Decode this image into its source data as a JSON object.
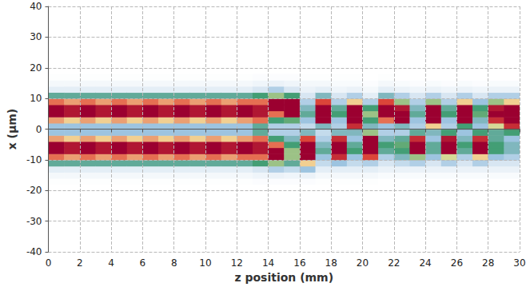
{
  "chart_data": {
    "type": "heatmap",
    "x_label": "z position (mm)",
    "y_label": "x (µm)",
    "xlim": [
      0,
      30
    ],
    "ylim": [
      -40,
      40
    ],
    "xticks": [
      0,
      2,
      4,
      6,
      8,
      10,
      12,
      14,
      16,
      18,
      20,
      22,
      24,
      26,
      28,
      30
    ],
    "yticks": [
      -40,
      -30,
      -20,
      -10,
      0,
      10,
      20,
      30,
      40
    ],
    "grid": true,
    "x": [
      0.5,
      1.5,
      2.5,
      3.5,
      4.5,
      5.5,
      6.5,
      7.5,
      8.5,
      9.5,
      10.5,
      11.5,
      12.5,
      13.5,
      14.5,
      15.5,
      16.5,
      17.5,
      18.5,
      19.5,
      20.5,
      21.5,
      22.5,
      23.5,
      24.5,
      25.5,
      26.5,
      27.5,
      28.5,
      29.5
    ],
    "y": [
      -17,
      -15,
      -13,
      -11,
      -9,
      -7,
      -5,
      -3,
      -1,
      1,
      3,
      5,
      7,
      9,
      11,
      13,
      15,
      17
    ],
    "values": [
      [
        0.04,
        0.08,
        0.15,
        0.45,
        0.8,
        1,
        1,
        0.75,
        0.35,
        0.35,
        0.75,
        1,
        1,
        0.8,
        0.45,
        0.15,
        0.08,
        0.04
      ],
      [
        0.04,
        0.08,
        0.15,
        0.45,
        0.75,
        0.95,
        0.95,
        0.7,
        0.35,
        0.35,
        0.7,
        0.95,
        0.95,
        0.75,
        0.45,
        0.15,
        0.08,
        0.04
      ],
      [
        0.04,
        0.08,
        0.15,
        0.45,
        0.8,
        1,
        1,
        0.75,
        0.35,
        0.35,
        0.75,
        1,
        1,
        0.8,
        0.45,
        0.15,
        0.08,
        0.04
      ],
      [
        0.04,
        0.08,
        0.15,
        0.45,
        0.75,
        0.95,
        0.95,
        0.7,
        0.35,
        0.35,
        0.7,
        0.95,
        0.95,
        0.75,
        0.45,
        0.15,
        0.08,
        0.04
      ],
      [
        0.04,
        0.08,
        0.15,
        0.45,
        0.8,
        1,
        1,
        0.75,
        0.35,
        0.35,
        0.75,
        1,
        1,
        0.8,
        0.45,
        0.15,
        0.08,
        0.04
      ],
      [
        0.04,
        0.08,
        0.15,
        0.45,
        0.75,
        0.95,
        0.95,
        0.7,
        0.35,
        0.35,
        0.7,
        0.95,
        0.95,
        0.75,
        0.45,
        0.15,
        0.08,
        0.04
      ],
      [
        0.04,
        0.08,
        0.15,
        0.45,
        0.8,
        1,
        1,
        0.75,
        0.35,
        0.35,
        0.75,
        1,
        1,
        0.8,
        0.45,
        0.15,
        0.08,
        0.04
      ],
      [
        0.04,
        0.08,
        0.15,
        0.45,
        0.75,
        0.95,
        0.95,
        0.7,
        0.35,
        0.35,
        0.7,
        0.95,
        0.95,
        0.75,
        0.45,
        0.15,
        0.08,
        0.04
      ],
      [
        0.04,
        0.08,
        0.15,
        0.45,
        0.8,
        1,
        1,
        0.75,
        0.35,
        0.35,
        0.75,
        1,
        1,
        0.8,
        0.45,
        0.15,
        0.08,
        0.04
      ],
      [
        0.04,
        0.08,
        0.15,
        0.45,
        0.75,
        0.95,
        0.95,
        0.7,
        0.35,
        0.35,
        0.7,
        0.95,
        0.95,
        0.75,
        0.45,
        0.15,
        0.08,
        0.04
      ],
      [
        0.04,
        0.08,
        0.15,
        0.45,
        0.8,
        1,
        1,
        0.75,
        0.35,
        0.35,
        0.75,
        1,
        1,
        0.8,
        0.45,
        0.15,
        0.08,
        0.04
      ],
      [
        0.04,
        0.08,
        0.15,
        0.45,
        0.75,
        0.95,
        0.95,
        0.7,
        0.35,
        0.35,
        0.7,
        0.95,
        0.95,
        0.75,
        0.45,
        0.15,
        0.08,
        0.04
      ],
      [
        0.04,
        0.08,
        0.15,
        0.45,
        0.8,
        1,
        1,
        0.75,
        0.35,
        0.35,
        0.75,
        1,
        1,
        0.8,
        0.45,
        0.15,
        0.08,
        0.04
      ],
      [
        0.05,
        0.1,
        0.2,
        0.5,
        0.8,
        0.95,
        0.95,
        0.8,
        0.45,
        0.45,
        0.8,
        0.95,
        0.95,
        0.8,
        0.5,
        0.2,
        0.1,
        0.05
      ],
      [
        0.05,
        0.12,
        0.3,
        0.6,
        1,
        1,
        0.8,
        0.5,
        0.3,
        0.3,
        0.5,
        0.8,
        1,
        1,
        0.6,
        0.3,
        0.12,
        0.05
      ],
      [
        0.05,
        0.1,
        0.25,
        0.45,
        0.6,
        0.6,
        0.5,
        0.4,
        0.3,
        0.3,
        0.55,
        1,
        1,
        1,
        0.5,
        0.2,
        0.1,
        0.05
      ],
      [
        0.05,
        0.12,
        0.35,
        0.7,
        1,
        1,
        1,
        0.85,
        0.4,
        0.25,
        0.35,
        0.45,
        0.4,
        0.3,
        0.2,
        0.12,
        0.08,
        0.04
      ],
      [
        0.04,
        0.08,
        0.15,
        0.25,
        0.35,
        0.45,
        0.4,
        0.3,
        0.25,
        0.4,
        1,
        1,
        1,
        0.85,
        0.4,
        0.15,
        0.08,
        0.04
      ],
      [
        0.04,
        0.08,
        0.15,
        0.35,
        0.9,
        1,
        1,
        0.9,
        0.4,
        0.3,
        0.35,
        0.5,
        0.45,
        0.3,
        0.2,
        0.1,
        0.06,
        0.04
      ],
      [
        0.04,
        0.08,
        0.15,
        0.25,
        0.35,
        0.5,
        0.45,
        0.35,
        0.4,
        0.9,
        1,
        1,
        1,
        0.7,
        0.3,
        0.12,
        0.06,
        0.04
      ],
      [
        0.04,
        0.08,
        0.15,
        0.3,
        0.85,
        1,
        1,
        1,
        0.6,
        0.4,
        0.5,
        0.6,
        0.5,
        0.3,
        0.15,
        0.08,
        0.05,
        0.03
      ],
      [
        0.03,
        0.06,
        0.12,
        0.2,
        0.3,
        0.45,
        0.5,
        0.4,
        0.3,
        0.35,
        0.8,
        1,
        1,
        0.85,
        0.4,
        0.15,
        0.08,
        0.04
      ],
      [
        0.03,
        0.06,
        0.12,
        0.25,
        0.4,
        0.5,
        0.55,
        0.45,
        0.3,
        0.4,
        1,
        1,
        0.95,
        0.6,
        0.3,
        0.12,
        0.06,
        0.03
      ],
      [
        0.03,
        0.06,
        0.12,
        0.3,
        0.6,
        1,
        1,
        0.9,
        0.45,
        0.3,
        0.35,
        0.45,
        0.4,
        0.3,
        0.2,
        0.1,
        0.05,
        0.03
      ],
      [
        0.03,
        0.06,
        0.12,
        0.2,
        0.35,
        0.45,
        0.45,
        0.35,
        0.4,
        0.7,
        1,
        1,
        1,
        0.6,
        0.3,
        0.12,
        0.06,
        0.03
      ],
      [
        0.03,
        0.06,
        0.12,
        0.3,
        0.65,
        1,
        1,
        0.95,
        0.5,
        0.3,
        0.35,
        0.5,
        0.45,
        0.3,
        0.2,
        0.1,
        0.05,
        0.03
      ],
      [
        0.03,
        0.06,
        0.12,
        0.2,
        0.3,
        0.45,
        0.5,
        0.4,
        0.35,
        0.5,
        1,
        1,
        1,
        0.7,
        0.3,
        0.12,
        0.06,
        0.03
      ],
      [
        0.03,
        0.06,
        0.12,
        0.3,
        0.7,
        1,
        1,
        0.9,
        0.5,
        0.35,
        0.4,
        0.55,
        0.5,
        0.35,
        0.2,
        0.1,
        0.05,
        0.03
      ],
      [
        0.03,
        0.06,
        0.12,
        0.2,
        0.35,
        0.5,
        0.5,
        0.45,
        0.45,
        0.65,
        0.9,
        1,
        0.95,
        0.6,
        0.3,
        0.12,
        0.06,
        0.03
      ],
      [
        0.03,
        0.06,
        0.12,
        0.2,
        0.3,
        0.4,
        0.4,
        0.35,
        0.5,
        0.9,
        1,
        1,
        1,
        0.7,
        0.3,
        0.12,
        0.06,
        0.03
      ]
    ]
  }
}
